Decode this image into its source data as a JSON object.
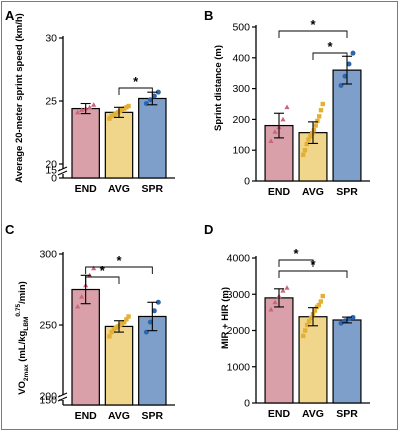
{
  "colors": {
    "END": "#d9a0a9",
    "AVG": "#f0d68a",
    "SPR": "#7f9fcb",
    "END_dot": "#c9667a",
    "AVG_dot": "#e3b036",
    "SPR_dot": "#2e66ad"
  },
  "chart_data": [
    {
      "panel": "A",
      "type": "bar",
      "ylabel": "Average 20-meter sprint speed (km/h)",
      "categories": [
        "END",
        "AVG",
        "SPR"
      ],
      "values": [
        24.4,
        24.1,
        25.2
      ],
      "errors": [
        0.4,
        0.4,
        0.5
      ],
      "points": [
        [
          24.1,
          24.3,
          24.4,
          24.5,
          24.7
        ],
        [
          23.6,
          23.8,
          23.9,
          24.0,
          24.1,
          24.2,
          24.3,
          24.4,
          24.5,
          24.6
        ],
        [
          24.8,
          25.1,
          25.4,
          25.7
        ]
      ],
      "yticks": [
        "0",
        "15",
        "20",
        "25",
        "30"
      ],
      "axis_break": true,
      "sig": [
        {
          "from": 1,
          "to": 2,
          "label": "*"
        }
      ]
    },
    {
      "panel": "B",
      "type": "bar",
      "ylabel": "Sprint distance (m)",
      "categories": [
        "END",
        "AVG",
        "SPR"
      ],
      "values": [
        180,
        157,
        360
      ],
      "errors": [
        40,
        35,
        45
      ],
      "points": [
        [
          130,
          160,
          175,
          200,
          240
        ],
        [
          85,
          100,
          120,
          135,
          145,
          155,
          165,
          180,
          195,
          210,
          230,
          250
        ],
        [
          310,
          340,
          380,
          415
        ]
      ],
      "yticks": [
        "0",
        "100",
        "200",
        "300",
        "400",
        "500"
      ],
      "ylim": [
        0,
        500
      ],
      "sig": [
        {
          "from": 0,
          "to": 2,
          "label": "*"
        },
        {
          "from": 1,
          "to": 2,
          "label": "*"
        }
      ]
    },
    {
      "panel": "C",
      "type": "bar",
      "ylabel_main": "VO",
      "ylabel_sub1": "2max",
      "ylabel_mid": " (mL/kg",
      "ylabel_sub2": "LBM",
      "ylabel_sup": "0.75",
      "ylabel_end": "/min)",
      "categories": [
        "END",
        "AVG",
        "SPR"
      ],
      "values": [
        275,
        249,
        256
      ],
      "errors": [
        10,
        4,
        10
      ],
      "points": [
        [
          263,
          270,
          278,
          285,
          290
        ],
        [
          242,
          245,
          247,
          248,
          249,
          250,
          251,
          252,
          254,
          256
        ],
        [
          245,
          252,
          260,
          266
        ]
      ],
      "yticks": [
        "150",
        "200",
        "250",
        "300"
      ],
      "axis_break": true,
      "sig": [
        {
          "from": 0,
          "to": 1,
          "label": "*"
        },
        {
          "from": 0,
          "to": 2,
          "label": "*"
        }
      ]
    },
    {
      "panel": "D",
      "type": "bar",
      "ylabel": "MIR + HIR (m)",
      "categories": [
        "END",
        "AVG",
        "SPR"
      ],
      "values": [
        2900,
        2380,
        2290
      ],
      "errors": [
        250,
        250,
        80
      ],
      "points": [
        [
          2580,
          2780,
          2950,
          3100,
          3180
        ],
        [
          1850,
          2000,
          2150,
          2250,
          2350,
          2450,
          2550,
          2650,
          2700,
          2800,
          2950
        ],
        [
          2200,
          2270,
          2320,
          2360
        ]
      ],
      "yticks": [
        "0",
        "1000",
        "2000",
        "3000",
        "4000"
      ],
      "ylim": [
        0,
        4000
      ],
      "sig": [
        {
          "from": 0,
          "to": 1,
          "label": "*"
        },
        {
          "from": 0,
          "to": 2,
          "label": "*"
        }
      ]
    }
  ]
}
